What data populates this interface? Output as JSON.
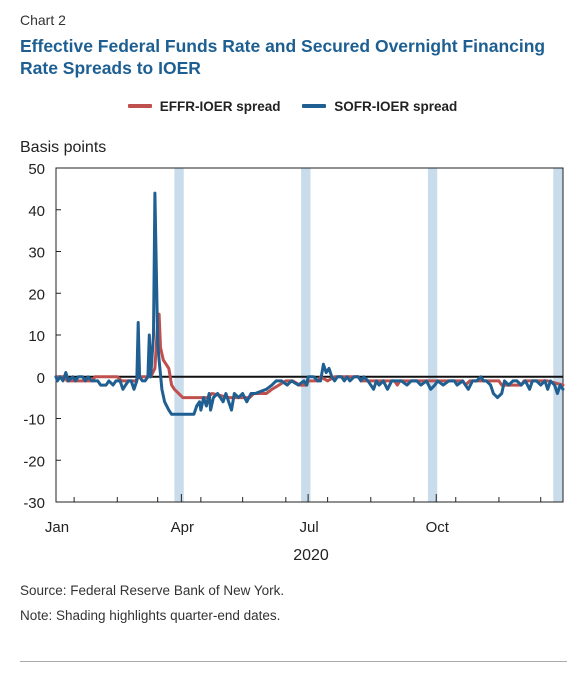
{
  "figure": {
    "label": "Chart 2",
    "title": "Effective Federal Funds Rate and Secured Overnight Financing Rate Spreads to IOER",
    "source": "Source: Federal Reserve Bank of New York.",
    "note": "Note: Shading highlights quarter-end dates."
  },
  "colors": {
    "efffr_series": "#c0504d",
    "sofr_series": "#1f5f91",
    "shading": "#c9dceb",
    "title": "#1d5f92"
  },
  "chart_data": {
    "type": "line",
    "ylabel": "Basis points",
    "xlabel": "2020",
    "ylim": [
      -30,
      50
    ],
    "yticks": [
      50,
      40,
      30,
      20,
      10,
      0,
      -10,
      -20,
      -30
    ],
    "xlim": [
      "2020-01-02",
      "2020-12-31"
    ],
    "xticks": [
      {
        "label": "Jan",
        "date": "2020-01-01"
      },
      {
        "label": "Apr",
        "date": "2020-04-01"
      },
      {
        "label": "Jul",
        "date": "2020-07-01"
      },
      {
        "label": "Oct",
        "date": "2020-10-01"
      }
    ],
    "grid": false,
    "legend_position": "top-center",
    "zero_line": true,
    "shaded_periods": [
      [
        "2020-03-27",
        "2020-04-02"
      ],
      [
        "2020-06-26",
        "2020-07-02"
      ],
      [
        "2020-09-25",
        "2020-10-01"
      ],
      [
        "2020-12-24",
        "2020-12-31"
      ]
    ],
    "series": [
      {
        "name": "EFFR-IOER spread",
        "color": "#c0504d",
        "points": [
          [
            "2020-01-02",
            0
          ],
          [
            "2020-01-08",
            0
          ],
          [
            "2020-01-10",
            -1
          ],
          [
            "2020-01-28",
            -1
          ],
          [
            "2020-01-30",
            0
          ],
          [
            "2020-02-15",
            0
          ],
          [
            "2020-02-18",
            -1
          ],
          [
            "2020-02-28",
            -1
          ],
          [
            "2020-03-02",
            0
          ],
          [
            "2020-03-10",
            0
          ],
          [
            "2020-03-13",
            2
          ],
          [
            "2020-03-15",
            13
          ],
          [
            "2020-03-16",
            15
          ],
          [
            "2020-03-17",
            7
          ],
          [
            "2020-03-19",
            4
          ],
          [
            "2020-03-23",
            2
          ],
          [
            "2020-03-25",
            -2
          ],
          [
            "2020-03-27",
            -3
          ],
          [
            "2020-04-02",
            -5
          ],
          [
            "2020-04-20",
            -5
          ],
          [
            "2020-04-23",
            -4
          ],
          [
            "2020-05-05",
            -5
          ],
          [
            "2020-05-20",
            -5
          ],
          [
            "2020-05-23",
            -4
          ],
          [
            "2020-06-01",
            -4
          ],
          [
            "2020-06-05",
            -3
          ],
          [
            "2020-06-10",
            -2
          ],
          [
            "2020-06-15",
            -1
          ],
          [
            "2020-06-20",
            -1
          ],
          [
            "2020-06-25",
            -2
          ],
          [
            "2020-06-30",
            -2
          ],
          [
            "2020-07-01",
            -1
          ],
          [
            "2020-07-08",
            -1
          ],
          [
            "2020-07-10",
            0
          ],
          [
            "2020-07-15",
            -1
          ],
          [
            "2020-07-20",
            0
          ],
          [
            "2020-08-01",
            0
          ],
          [
            "2020-08-06",
            0
          ],
          [
            "2020-08-08",
            -1
          ],
          [
            "2020-09-01",
            -1
          ],
          [
            "2020-09-03",
            -2
          ],
          [
            "2020-09-05",
            -1
          ],
          [
            "2020-10-01",
            -1
          ],
          [
            "2020-10-03",
            -1
          ],
          [
            "2020-10-20",
            -1
          ],
          [
            "2020-10-22",
            -2
          ],
          [
            "2020-10-25",
            -1
          ],
          [
            "2020-11-15",
            -1
          ],
          [
            "2020-11-17",
            -2
          ],
          [
            "2020-12-01",
            -2
          ],
          [
            "2020-12-03",
            -1
          ],
          [
            "2020-12-20",
            -1
          ],
          [
            "2020-12-31",
            -2
          ]
        ]
      },
      {
        "name": "SOFR-IOER spread",
        "color": "#1f5f91",
        "points": [
          [
            "2020-01-02",
            0
          ],
          [
            "2020-01-03",
            -1
          ],
          [
            "2020-01-05",
            0
          ],
          [
            "2020-01-07",
            -1
          ],
          [
            "2020-01-09",
            1
          ],
          [
            "2020-01-11",
            -1
          ],
          [
            "2020-01-14",
            0
          ],
          [
            "2020-01-16",
            -1
          ],
          [
            "2020-01-18",
            0
          ],
          [
            "2020-01-21",
            0
          ],
          [
            "2020-01-23",
            -1
          ],
          [
            "2020-01-25",
            0
          ],
          [
            "2020-01-28",
            -1
          ],
          [
            "2020-02-01",
            -1
          ],
          [
            "2020-02-03",
            -2
          ],
          [
            "2020-02-07",
            -2
          ],
          [
            "2020-02-09",
            -1
          ],
          [
            "2020-02-12",
            -2
          ],
          [
            "2020-02-14",
            -1
          ],
          [
            "2020-02-17",
            -1
          ],
          [
            "2020-02-19",
            -3
          ],
          [
            "2020-02-21",
            -2
          ],
          [
            "2020-02-23",
            -1
          ],
          [
            "2020-02-25",
            -1
          ],
          [
            "2020-02-27",
            -3
          ],
          [
            "2020-02-29",
            -1
          ],
          [
            "2020-03-01",
            13
          ],
          [
            "2020-03-02",
            0
          ],
          [
            "2020-03-04",
            -1
          ],
          [
            "2020-03-06",
            -1
          ],
          [
            "2020-03-08",
            0
          ],
          [
            "2020-03-09",
            10
          ],
          [
            "2020-03-10",
            0
          ],
          [
            "2020-03-12",
            10
          ],
          [
            "2020-03-13",
            44
          ],
          [
            "2020-03-14",
            26
          ],
          [
            "2020-03-15",
            8
          ],
          [
            "2020-03-16",
            4
          ],
          [
            "2020-03-18",
            -3
          ],
          [
            "2020-03-20",
            -6
          ],
          [
            "2020-03-23",
            -8
          ],
          [
            "2020-03-25",
            -9
          ],
          [
            "2020-04-10",
            -9
          ],
          [
            "2020-04-12",
            -7
          ],
          [
            "2020-04-14",
            -6
          ],
          [
            "2020-04-15",
            -8
          ],
          [
            "2020-04-17",
            -5
          ],
          [
            "2020-04-19",
            -7
          ],
          [
            "2020-04-21",
            -4
          ],
          [
            "2020-04-22",
            -8
          ],
          [
            "2020-04-24",
            -5
          ],
          [
            "2020-04-27",
            -4
          ],
          [
            "2020-04-29",
            -5
          ],
          [
            "2020-05-01",
            -6
          ],
          [
            "2020-05-03",
            -4
          ],
          [
            "2020-05-05",
            -6
          ],
          [
            "2020-05-07",
            -8
          ],
          [
            "2020-05-09",
            -4
          ],
          [
            "2020-05-12",
            -5
          ],
          [
            "2020-05-15",
            -4
          ],
          [
            "2020-05-18",
            -6
          ],
          [
            "2020-05-21",
            -4
          ],
          [
            "2020-05-24",
            -4
          ],
          [
            "2020-06-01",
            -3
          ],
          [
            "2020-06-05",
            -2
          ],
          [
            "2020-06-08",
            -1
          ],
          [
            "2020-06-12",
            -1
          ],
          [
            "2020-06-16",
            -2
          ],
          [
            "2020-06-19",
            -1
          ],
          [
            "2020-06-24",
            -2
          ],
          [
            "2020-06-28",
            -1
          ],
          [
            "2020-06-30",
            -2
          ],
          [
            "2020-07-01",
            0
          ],
          [
            "2020-07-05",
            0
          ],
          [
            "2020-07-08",
            -1
          ],
          [
            "2020-07-10",
            -1
          ],
          [
            "2020-07-12",
            3
          ],
          [
            "2020-07-14",
            1
          ],
          [
            "2020-07-16",
            2
          ],
          [
            "2020-07-18",
            0
          ],
          [
            "2020-07-20",
            -1
          ],
          [
            "2020-07-22",
            0
          ],
          [
            "2020-07-25",
            0
          ],
          [
            "2020-07-27",
            -1
          ],
          [
            "2020-07-29",
            0
          ],
          [
            "2020-07-31",
            -1
          ],
          [
            "2020-08-03",
            0
          ],
          [
            "2020-08-06",
            0
          ],
          [
            "2020-08-08",
            -1
          ],
          [
            "2020-08-10",
            0
          ],
          [
            "2020-08-13",
            -1
          ],
          [
            "2020-08-17",
            -3
          ],
          [
            "2020-08-19",
            -1
          ],
          [
            "2020-08-21",
            -2
          ],
          [
            "2020-08-24",
            -1
          ],
          [
            "2020-08-27",
            -3
          ],
          [
            "2020-08-30",
            -1
          ],
          [
            "2020-09-02",
            -1
          ],
          [
            "2020-09-06",
            -1
          ],
          [
            "2020-09-10",
            -2
          ],
          [
            "2020-09-13",
            -1
          ],
          [
            "2020-09-17",
            -1
          ],
          [
            "2020-09-20",
            -2
          ],
          [
            "2020-09-24",
            -1
          ],
          [
            "2020-09-27",
            -3
          ],
          [
            "2020-09-30",
            -2
          ],
          [
            "2020-10-02",
            -1
          ],
          [
            "2020-10-06",
            -2
          ],
          [
            "2020-10-10",
            -1
          ],
          [
            "2020-10-14",
            -1
          ],
          [
            "2020-10-16",
            -2
          ],
          [
            "2020-10-20",
            -1
          ],
          [
            "2020-10-24",
            -3
          ],
          [
            "2020-10-27",
            -1
          ],
          [
            "2020-10-30",
            -1
          ],
          [
            "2020-11-02",
            0
          ],
          [
            "2020-11-04",
            -1
          ],
          [
            "2020-11-06",
            -1
          ],
          [
            "2020-11-09",
            -2
          ],
          [
            "2020-11-11",
            -4
          ],
          [
            "2020-11-14",
            -5
          ],
          [
            "2020-11-17",
            -4
          ],
          [
            "2020-11-19",
            -1
          ],
          [
            "2020-11-22",
            -2
          ],
          [
            "2020-11-25",
            -1
          ],
          [
            "2020-11-28",
            -1
          ],
          [
            "2020-12-01",
            -2
          ],
          [
            "2020-12-04",
            -1
          ],
          [
            "2020-12-07",
            -3
          ],
          [
            "2020-12-09",
            -1
          ],
          [
            "2020-12-12",
            -1
          ],
          [
            "2020-12-15",
            -2
          ],
          [
            "2020-12-18",
            -1
          ],
          [
            "2020-12-20",
            -3
          ],
          [
            "2020-12-22",
            -1
          ],
          [
            "2020-12-25",
            -2
          ],
          [
            "2020-12-27",
            -4
          ],
          [
            "2020-12-29",
            -2
          ],
          [
            "2020-12-31",
            -3
          ]
        ]
      }
    ]
  }
}
